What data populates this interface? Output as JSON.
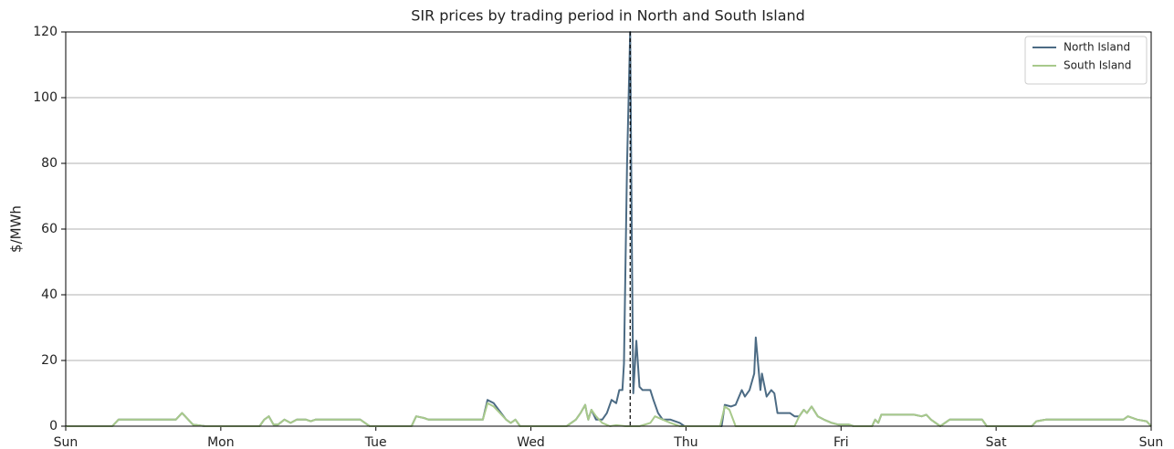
{
  "chart_data": {
    "type": "line",
    "title": "SIR prices by trading period in North and South Island",
    "ylabel": "$/MWh",
    "xlim": [
      0,
      7
    ],
    "xticks": [
      {
        "value": 0,
        "label": "Sun"
      },
      {
        "value": 1,
        "label": "Mon"
      },
      {
        "value": 2,
        "label": "Tue"
      },
      {
        "value": 3,
        "label": "Wed"
      },
      {
        "value": 4,
        "label": "Thu"
      },
      {
        "value": 5,
        "label": "Fri"
      },
      {
        "value": 6,
        "label": "Sat"
      },
      {
        "value": 7,
        "label": "Sun"
      }
    ],
    "ylim": [
      0,
      120
    ],
    "yticks": [
      0,
      20,
      40,
      60,
      80,
      100,
      120
    ],
    "grid": true,
    "legend": "upper right",
    "vline_x": 3.64,
    "series": [
      {
        "name": "North Island",
        "color": "#4c6b84",
        "x": [
          0,
          0.3,
          0.34,
          0.71,
          0.75,
          0.82,
          0.9,
          1.25,
          1.28,
          1.31,
          1.34,
          1.37,
          1.41,
          1.45,
          1.49,
          1.55,
          1.58,
          1.61,
          1.9,
          1.93,
          1.96,
          2.23,
          2.26,
          2.31,
          2.34,
          2.69,
          2.72,
          2.76,
          2.8,
          2.84,
          2.87,
          2.9,
          2.93,
          3.23,
          3.29,
          3.32,
          3.35,
          3.36,
          3.37,
          3.39,
          3.42,
          3.46,
          3.49,
          3.52,
          3.55,
          3.57,
          3.59,
          3.6,
          3.62,
          3.64,
          3.65,
          3.66,
          3.68,
          3.7,
          3.72,
          3.77,
          3.79,
          3.82,
          3.85,
          3.9,
          3.96,
          3.99,
          4.23,
          4.25,
          4.29,
          4.32,
          4.36,
          4.38,
          4.41,
          4.44,
          4.45,
          4.48,
          4.49,
          4.52,
          4.55,
          4.57,
          4.59,
          4.67,
          4.7,
          4.73,
          4.76,
          4.78,
          4.81,
          4.85,
          4.89,
          4.94,
          4.98,
          5.05,
          5.08,
          5.2,
          5.22,
          5.24,
          5.26,
          5.47,
          5.52,
          5.55,
          5.58,
          5.64,
          5.7,
          5.91,
          5.94,
          6.23,
          6.26,
          6.32,
          6.82,
          6.85,
          6.91,
          6.97,
          7.0
        ],
        "values": [
          0,
          0,
          2,
          2,
          4,
          0.5,
          0,
          0,
          2,
          3,
          0.5,
          0.5,
          2,
          1,
          2,
          2,
          1.5,
          2,
          2,
          1,
          0,
          0,
          3,
          2.5,
          2,
          2,
          8,
          7,
          4.5,
          2,
          1,
          2,
          0,
          0,
          2,
          4,
          6.5,
          4,
          2,
          5,
          2,
          2,
          4,
          8,
          7,
          11,
          11,
          19,
          80,
          120,
          60,
          10,
          26,
          12,
          11,
          11,
          8,
          4,
          2,
          2,
          1,
          0,
          0,
          6.5,
          6,
          6.5,
          11,
          9,
          11,
          16,
          27,
          11,
          16,
          9,
          11,
          10,
          4,
          4,
          3,
          3,
          5,
          4,
          6,
          3,
          2,
          1,
          0.5,
          0.5,
          0,
          0,
          2,
          1,
          3.5,
          3.5,
          3,
          3.5,
          2,
          0,
          2,
          2,
          0,
          0,
          1.5,
          2,
          2,
          3,
          2,
          1.5,
          0
        ]
      },
      {
        "name": "South Island",
        "color": "#a8c98b",
        "x": [
          0,
          0.3,
          0.34,
          0.71,
          0.75,
          0.82,
          0.9,
          1.25,
          1.28,
          1.31,
          1.34,
          1.37,
          1.41,
          1.45,
          1.49,
          1.55,
          1.58,
          1.61,
          1.9,
          1.93,
          1.96,
          2.23,
          2.26,
          2.31,
          2.34,
          2.69,
          2.72,
          2.76,
          2.8,
          2.84,
          2.87,
          2.9,
          2.93,
          3.23,
          3.29,
          3.32,
          3.35,
          3.36,
          3.37,
          3.39,
          3.42,
          3.46,
          3.51,
          3.55,
          3.61,
          3.7,
          3.77,
          3.8,
          3.85,
          3.9,
          3.96,
          4.22,
          4.25,
          4.28,
          4.32,
          4.7,
          4.73,
          4.76,
          4.78,
          4.81,
          4.85,
          4.89,
          4.94,
          4.98,
          5.05,
          5.08,
          5.2,
          5.22,
          5.24,
          5.26,
          5.47,
          5.52,
          5.55,
          5.58,
          5.64,
          5.7,
          5.91,
          5.94,
          6.23,
          6.26,
          6.32,
          6.82,
          6.85,
          6.91,
          6.97,
          7.0
        ],
        "values": [
          0,
          0,
          2,
          2,
          4,
          0.5,
          0,
          0,
          2,
          3,
          0.5,
          0.5,
          2,
          1,
          2,
          2,
          1.5,
          2,
          2,
          1,
          0,
          0,
          3,
          2.5,
          2,
          2,
          7,
          6,
          4,
          2,
          1,
          2,
          0,
          0,
          2,
          4,
          6.5,
          4,
          2,
          5,
          3,
          1,
          0,
          0.3,
          0,
          0,
          1,
          3,
          2,
          1,
          0,
          0,
          6,
          5,
          0,
          0,
          3,
          5,
          4,
          6,
          3,
          2,
          1,
          0.5,
          0.5,
          0,
          0,
          2,
          1,
          3.5,
          3.5,
          3,
          3.5,
          2,
          0,
          2,
          2,
          0,
          0,
          1.5,
          2,
          2,
          3,
          2,
          1.5,
          0
        ]
      }
    ]
  }
}
